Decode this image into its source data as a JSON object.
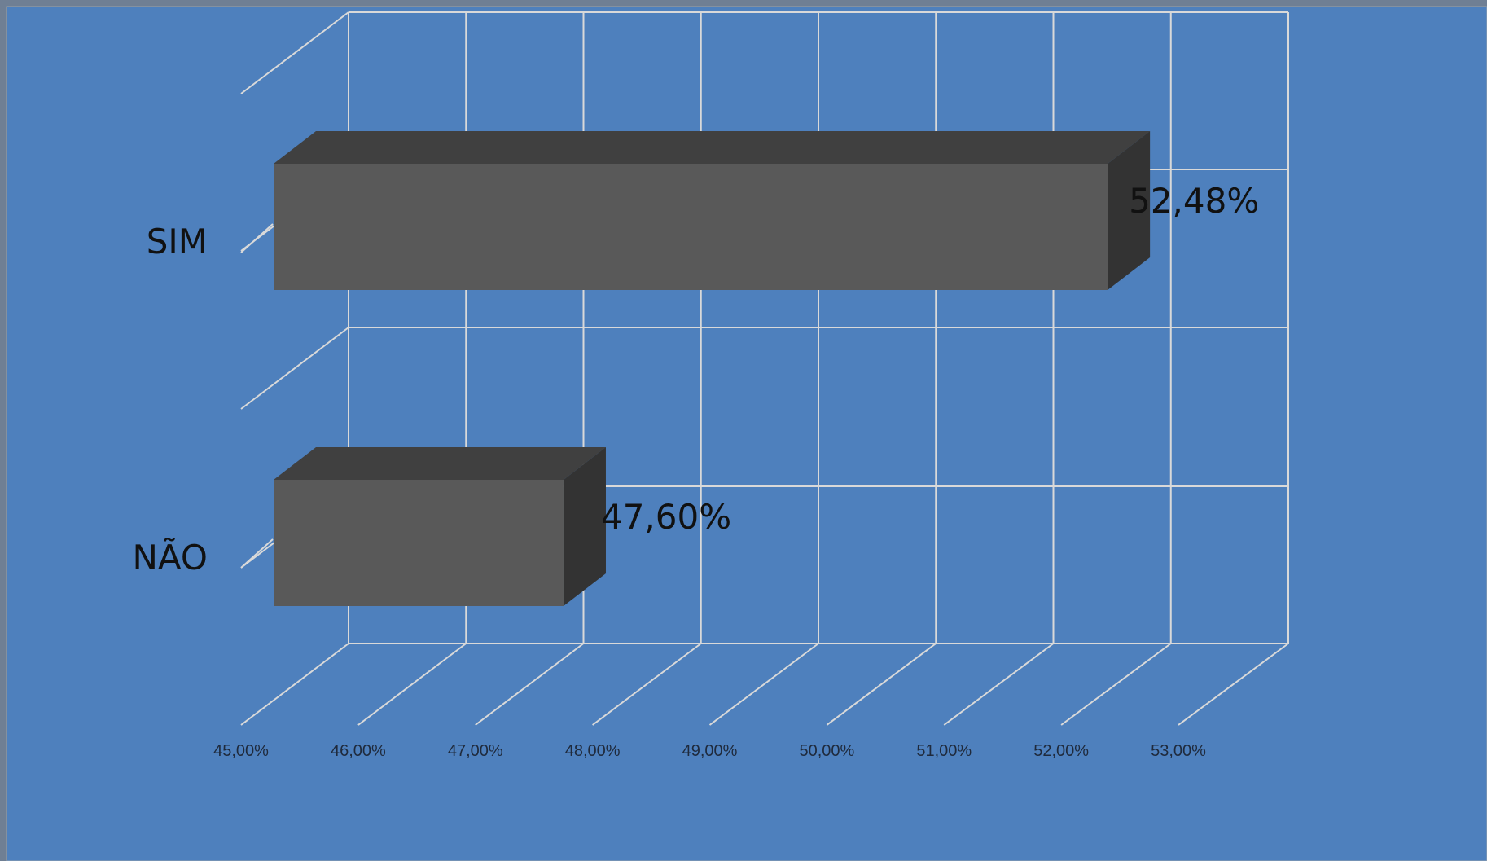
{
  "chart_data": {
    "type": "bar",
    "orientation": "horizontal",
    "style": "3d",
    "categories": [
      "SIM",
      "NÃO"
    ],
    "values": [
      52.48,
      47.6
    ],
    "value_labels": [
      "52,48%",
      "47,60%"
    ],
    "title": "",
    "xlabel": "",
    "ylabel": "",
    "xlim": [
      45,
      53
    ],
    "x_ticks": [
      45,
      46,
      47,
      48,
      49,
      50,
      51,
      52,
      53
    ],
    "x_tick_labels": [
      "45,00%",
      "46,00%",
      "47,00%",
      "48,00%",
      "49,00%",
      "50,00%",
      "51,00%",
      "52,00%",
      "53,00%"
    ],
    "grid": true,
    "legend": "none"
  },
  "colors": {
    "background": "#4e80bd",
    "bar_front": "#595959",
    "bar_top": "#404040",
    "bar_side": "#333333",
    "grid": "#d9d9d9",
    "frame_border": "#9aa3ad"
  }
}
